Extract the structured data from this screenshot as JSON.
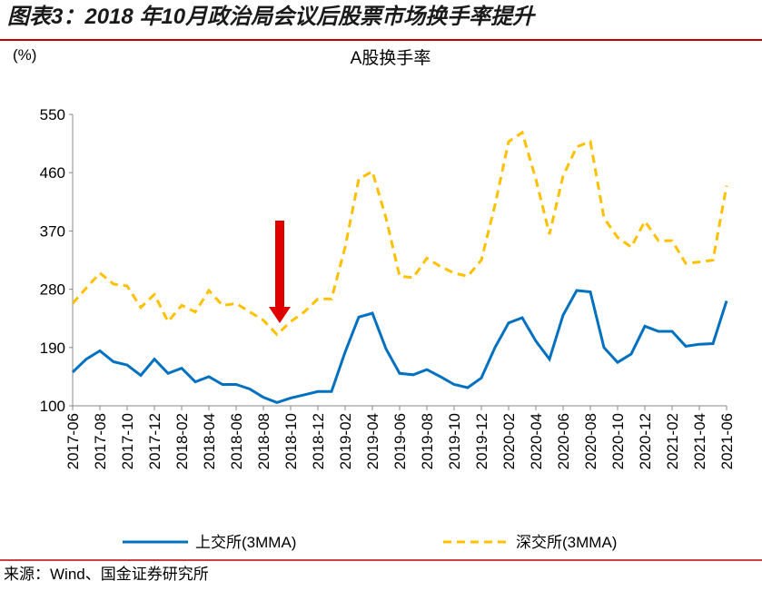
{
  "chart_data": {
    "type": "line",
    "header": "图表3：2018 年10月政治局会议后股票市场换手率提升",
    "title": "A股换手率",
    "y_unit": "(%)",
    "source": "来源：Wind、国金证券研究所",
    "categories": [
      "2017-06",
      null,
      "2017-08",
      null,
      "2017-10",
      null,
      "2017-12",
      null,
      "2018-02",
      null,
      "2018-04",
      null,
      "2018-06",
      null,
      "2018-08",
      null,
      "2018-10",
      null,
      "2018-12",
      null,
      "2019-02",
      null,
      "2019-04",
      null,
      "2019-06",
      null,
      "2019-08",
      null,
      "2019-10",
      null,
      "2019-12",
      null,
      "2020-02",
      null,
      "2020-04",
      null,
      "2020-06",
      null,
      "2020-08",
      null,
      "2020-10",
      null,
      "2020-12",
      null,
      "2021-02",
      null,
      "2021-04",
      null,
      "2021-06"
    ],
    "series": [
      {
        "name": "上交所(3MMA)",
        "color": "#0070c0",
        "dashed": false,
        "values": [
          152,
          172,
          185,
          168,
          163,
          147,
          172,
          150,
          158,
          137,
          145,
          133,
          133,
          126,
          113,
          105,
          112,
          117,
          122,
          122,
          183,
          237,
          243,
          188,
          150,
          148,
          156,
          145,
          133,
          128,
          143,
          190,
          228,
          236,
          200,
          172,
          240,
          278,
          276,
          190,
          167,
          180,
          223,
          215,
          215,
          192,
          195,
          196,
          262
        ]
      },
      {
        "name": "深交所(3MMA)",
        "color": "#ffc000",
        "dashed": true,
        "values": [
          258,
          282,
          305,
          288,
          285,
          252,
          272,
          230,
          255,
          245,
          278,
          255,
          258,
          245,
          232,
          210,
          230,
          245,
          265,
          265,
          345,
          450,
          462,
          390,
          300,
          298,
          328,
          315,
          305,
          300,
          325,
          410,
          508,
          522,
          450,
          365,
          455,
          500,
          508,
          390,
          360,
          345,
          385,
          355,
          355,
          320,
          322,
          325,
          440
        ]
      }
    ],
    "ylim": [
      100,
      550
    ],
    "yticks": [
      100,
      190,
      280,
      370,
      460,
      550
    ],
    "grid": false
  }
}
